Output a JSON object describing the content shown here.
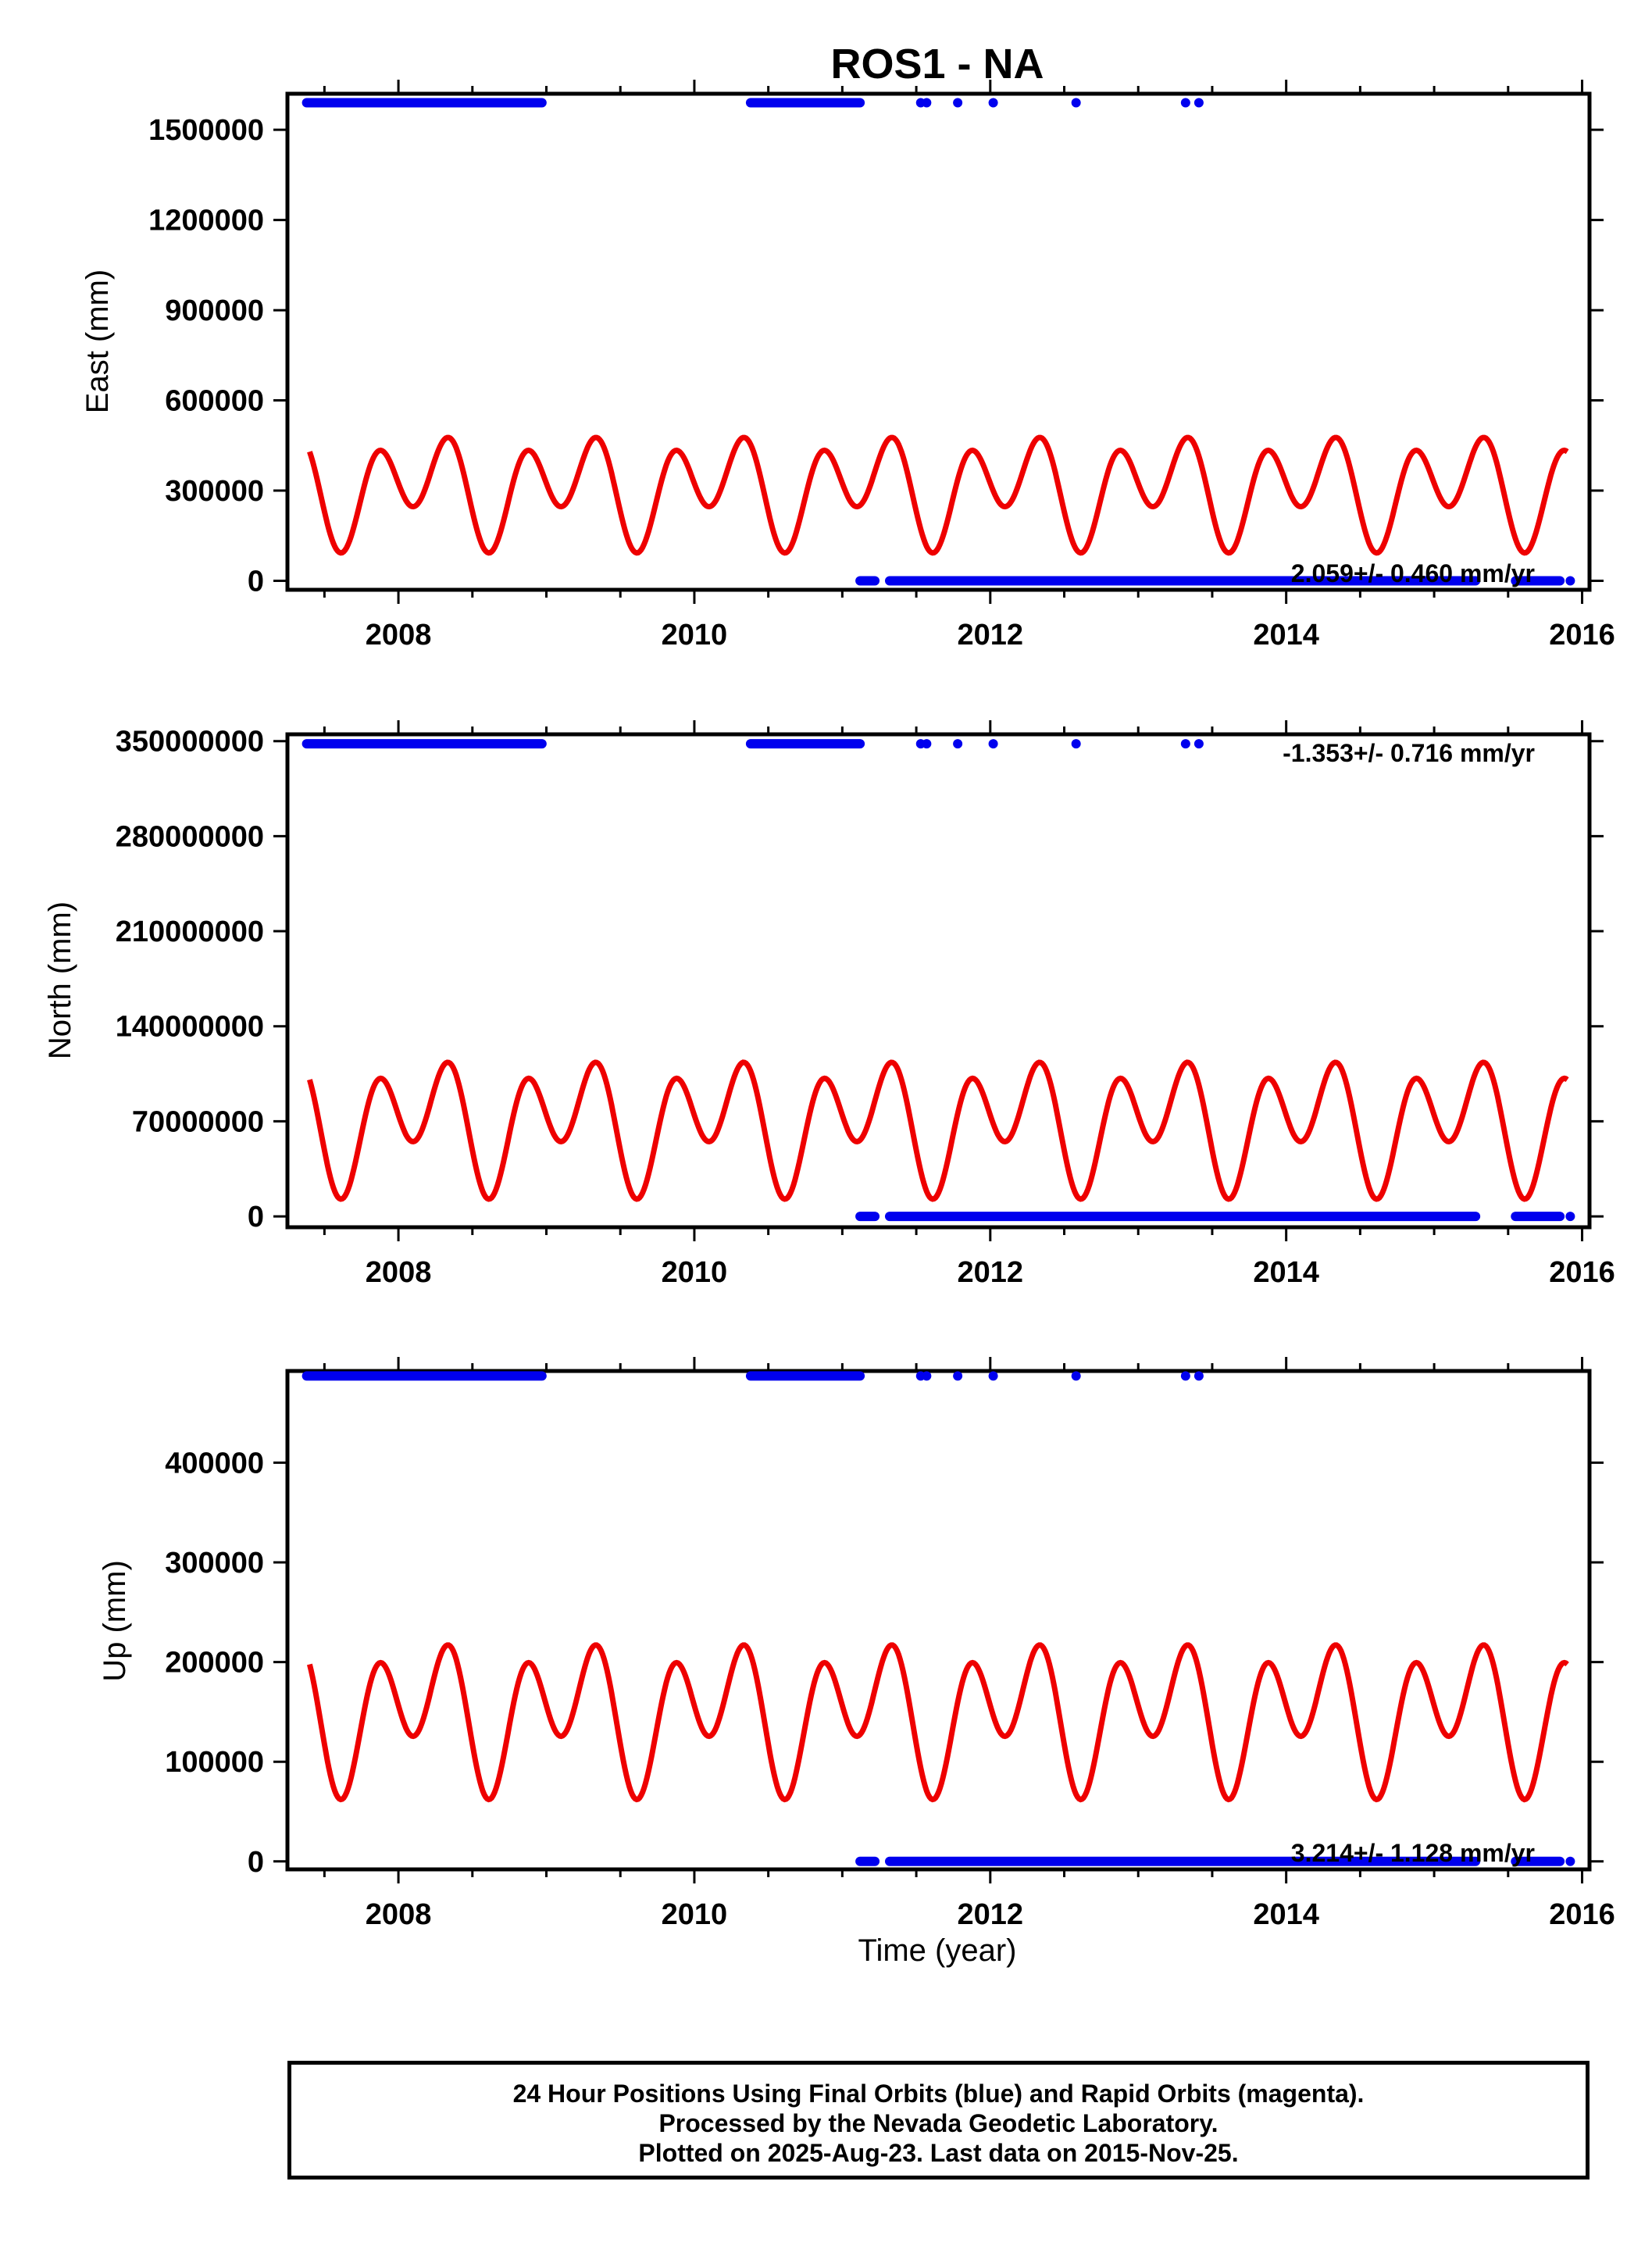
{
  "colors": {
    "final_orbits": "#0000ee",
    "model": "#ee0000",
    "axes": "#000000"
  },
  "chart_data": [
    {
      "type": "scatter",
      "title": "ROS1 - NA",
      "ylabel": "East (mm)",
      "xlabel": "",
      "xlim": [
        2007.25,
        2016.05
      ],
      "ylim": [
        -30000,
        1620000
      ],
      "xticks": [
        2008,
        2010,
        2012,
        2014,
        2016
      ],
      "yticks": [
        0,
        300000,
        600000,
        900000,
        1200000,
        1500000
      ],
      "rate_text": "2.059+/- 0.460 mm/yr",
      "rate_position": "bottom-right",
      "model": {
        "baseline": 310000,
        "a1": 80000,
        "a2": 140000,
        "start": 2007.4,
        "end": 2015.9
      },
      "series": [
        {
          "style": "points",
          "high_value": 1590000,
          "low_value": 0,
          "high_segments": [
            [
              2007.38,
              2008.97
            ],
            [
              2010.38,
              2011.12
            ]
          ],
          "high_points": [
            2011.53,
            2011.57,
            2011.78,
            2012.02,
            2012.58,
            2013.32,
            2013.41
          ],
          "low_segments": [
            [
              2011.12,
              2011.22
            ],
            [
              2011.32,
              2015.28
            ],
            [
              2015.55,
              2015.85
            ]
          ],
          "low_points": [
            2015.92
          ]
        }
      ]
    },
    {
      "type": "scatter",
      "title": "",
      "ylabel": "North (mm)",
      "xlabel": "",
      "xlim": [
        2007.25,
        2016.05
      ],
      "ylim": [
        -8000000,
        355000000
      ],
      "xticks": [
        2008,
        2010,
        2012,
        2014,
        2016
      ],
      "yticks": [
        0,
        70000000,
        140000000,
        210000000,
        280000000,
        350000000
      ],
      "rate_text": "-1.353+/- 0.716 mm/yr",
      "rate_position": "top-right",
      "model": {
        "baseline": 70000000,
        "a1": 22000000,
        "a2": 36000000,
        "start": 2007.4,
        "end": 2015.9
      },
      "series": [
        {
          "style": "points",
          "high_value": 348000000,
          "low_value": 0,
          "high_segments": [
            [
              2007.38,
              2008.97
            ],
            [
              2010.38,
              2011.12
            ]
          ],
          "high_points": [
            2011.53,
            2011.57,
            2011.78,
            2012.02,
            2012.58,
            2013.32,
            2013.41
          ],
          "low_segments": [
            [
              2011.12,
              2011.22
            ],
            [
              2011.32,
              2015.28
            ],
            [
              2015.55,
              2015.85
            ]
          ],
          "low_points": [
            2015.92
          ]
        }
      ]
    },
    {
      "type": "scatter",
      "title": "",
      "ylabel": "Up (mm)",
      "xlabel": "Time (year)",
      "xlim": [
        2007.25,
        2016.05
      ],
      "ylim": [
        -8000,
        492000
      ],
      "xticks": [
        2008,
        2010,
        2012,
        2014,
        2016
      ],
      "yticks": [
        0,
        100000,
        200000,
        300000,
        400000
      ],
      "rate_text": "3.214+/- 1.128 mm/yr",
      "rate_position": "bottom-right",
      "model": {
        "baseline": 150000,
        "a1": 33000,
        "a2": 56000,
        "start": 2007.4,
        "end": 2015.9
      },
      "series": [
        {
          "style": "points",
          "high_value": 487000,
          "low_value": 0,
          "high_segments": [
            [
              2007.38,
              2008.97
            ],
            [
              2010.38,
              2011.12
            ]
          ],
          "high_points": [
            2011.53,
            2011.57,
            2011.78,
            2012.02,
            2012.58,
            2013.32,
            2013.41
          ],
          "low_segments": [
            [
              2011.12,
              2011.22
            ],
            [
              2011.32,
              2015.28
            ],
            [
              2015.55,
              2015.85
            ]
          ],
          "low_points": [
            2015.92
          ]
        }
      ]
    }
  ],
  "footer": {
    "line1": "24 Hour Positions Using Final Orbits (blue) and Rapid Orbits (magenta).",
    "line2": "Processed by the Nevada Geodetic Laboratory.",
    "line3": "Plotted on 2025-Aug-23. Last data on 2015-Nov-25."
  }
}
